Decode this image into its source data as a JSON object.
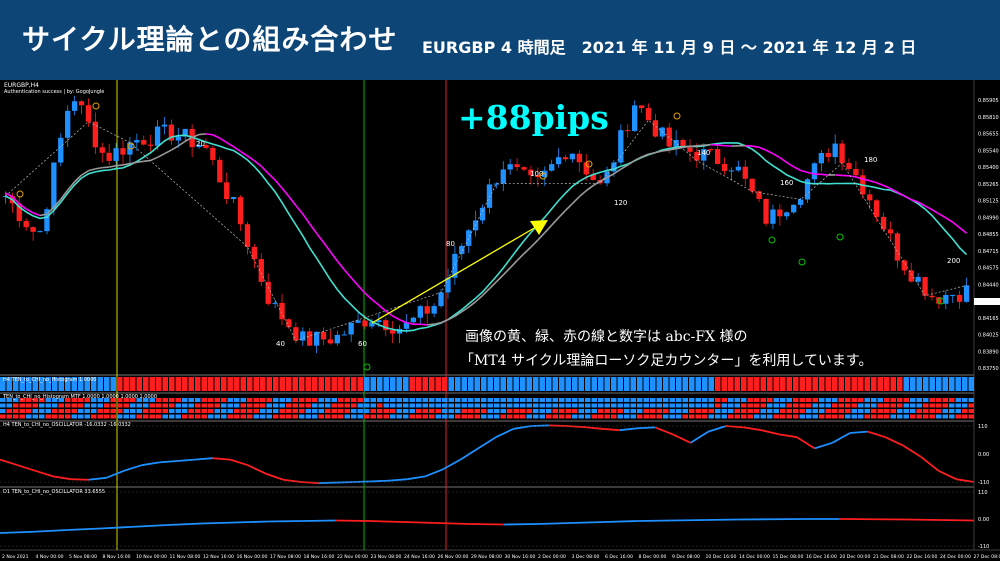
{
  "header": {
    "title": "サイクル理論との組み合わせ",
    "subtitle": "EURGBP 4 時間足　2021 年 11 月 9 日 ～ 2021 年 12 月 2 日"
  },
  "chart": {
    "symbol_label": "EURGBP,H4",
    "auth_text": "Authentication success | by: GogoJungle",
    "pips_label": "+88pips",
    "note_line1": "画像の黄、緑、赤の線と数字は abc-FX 様の",
    "note_line2": "「MT4 サイクル理論ローソク足カウンター」を利用しています。",
    "counter_labels": [
      "20",
      "40",
      "60",
      "80",
      "100",
      "120",
      "140",
      "160",
      "180",
      "200"
    ],
    "colors": {
      "bull": "#1e90ff",
      "bear": "#ff1e1e",
      "ma_fast": "#40e0d0",
      "ma_slow": "#ff00ff",
      "ma_gray": "#9a9a9a",
      "yellow_line": "#d4d400",
      "green_line": "#00b800",
      "red_line": "#e02020",
      "arrow": "#ffff00"
    }
  },
  "panels": {
    "histogram_label": "H4 TEN_to_CHI_no_Histogram 1.0000",
    "mtf_label": "TEN_to_CHI_no_Histogram MTF 1.0000 1.0000 1.0000 1.0000",
    "osc_h4_label": "H4 TEN_to_CHI_no_OSCILLATOR -16.0332 -16.0332",
    "osc_d1_label": "D1 TEN_to_CHI_no_OSCILLATOR 33.6555"
  },
  "price_axis": [
    "0.85905",
    "0.85810",
    "0.85655",
    "0.85540",
    "0.85400",
    "0.85265",
    "0.85125",
    "0.84990",
    "0.84855",
    "0.84715",
    "0.84575",
    "0.84440",
    "0.84300",
    "0.84165",
    "0.84025",
    "0.83890",
    "0.83750"
  ],
  "osc_axis": {
    "h4": [
      "110",
      "0.00",
      "-110"
    ],
    "d1": [
      "110",
      "0.00",
      "-110"
    ]
  },
  "time_axis": [
    "2 Nov 2021",
    "4 Nov 00:00",
    "5 Nov 08:00",
    "8 Nov 16:00",
    "10 Nov 00:00",
    "11 Nov 08:00",
    "12 Nov 16:00",
    "16 Nov 00:00",
    "17 Nov 08:00",
    "18 Nov 16:00",
    "22 Nov 00:00",
    "23 Nov 08:00",
    "24 Nov 16:00",
    "26 Nov 00:00",
    "29 Nov 08:00",
    "30 Nov 16:00",
    "2 Dec 00:00",
    "3 Dec 08:00",
    "6 Dec 16:00",
    "8 Dec 00:00",
    "9 Dec 08:00",
    "10 Dec 16:00",
    "14 Dec 00:00",
    "15 Dec 08:00",
    "16 Dec 16:00",
    "20 Dec 00:00",
    "21 Dec 08:00",
    "22 Dec 16:00",
    "24 Dec 00:00",
    "27 Dec 08:00"
  ],
  "chart_data": {
    "type": "candlestick",
    "symbol": "EURGBP",
    "timeframe": "H4",
    "close_path_x_dates": [
      "2 Nov",
      "4 Nov",
      "5 Nov",
      "8 Nov",
      "10 Nov",
      "11 Nov",
      "12 Nov",
      "16 Nov",
      "17 Nov",
      "18 Nov",
      "22 Nov",
      "23 Nov",
      "24 Nov",
      "26 Nov",
      "29 Nov",
      "30 Nov",
      "2 Dec",
      "3 Dec",
      "6 Dec",
      "8 Dec",
      "9 Dec",
      "10 Dec",
      "14 Dec",
      "15 Dec",
      "16 Dec",
      "20 Dec",
      "21 Dec",
      "22 Dec",
      "24 Dec",
      "27 Dec"
    ],
    "close_path": [
      0.8505,
      0.8472,
      0.8588,
      0.8535,
      0.855,
      0.8555,
      0.8545,
      0.849,
      0.842,
      0.839,
      0.8393,
      0.841,
      0.84,
      0.842,
      0.848,
      0.853,
      0.8512,
      0.8545,
      0.851,
      0.858,
      0.8545,
      0.8538,
      0.853,
      0.8485,
      0.851,
      0.8548,
      0.8508,
      0.8455,
      0.8425,
      0.843
    ],
    "y_range": [
      0.8375,
      0.85905
    ]
  }
}
